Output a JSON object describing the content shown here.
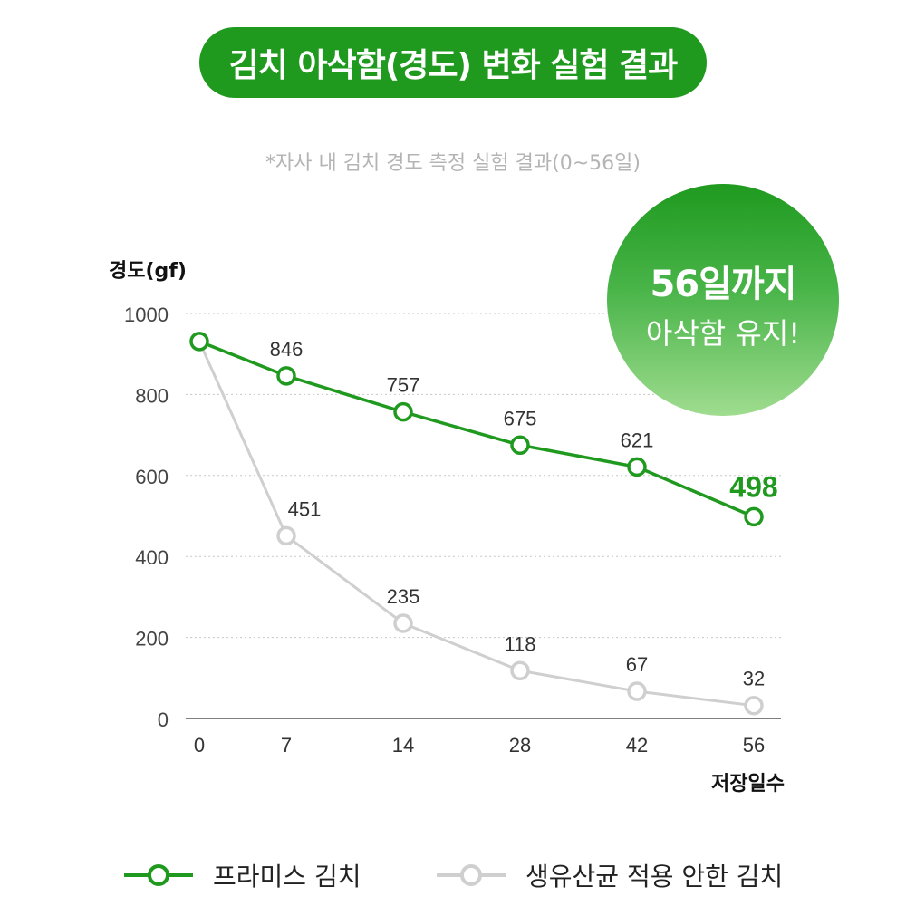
{
  "header": {
    "title": "김치 아삭함(경도) 변화 실험 결과",
    "subtitle": "*자사 내 김치 경도 측정 실험 결과(0~56일)"
  },
  "badge": {
    "line1": "56일까지",
    "line2": "아삭함 유지!"
  },
  "colors": {
    "accent": "#1f9a1f",
    "gray_series": "#cfcfcf"
  },
  "chart_data": {
    "type": "line",
    "ylabel": "경도(gf)",
    "xlabel": "저장일수",
    "ylim": [
      0,
      1000
    ],
    "y_ticks": [
      "0",
      "200",
      "400",
      "600",
      "800",
      "1000"
    ],
    "categories": [
      "0",
      "7",
      "14",
      "28",
      "42",
      "56"
    ],
    "grid": "horizontal dotted",
    "series": [
      {
        "name": "프라미스 김치",
        "color": "#1f9a1f",
        "values": [
          931,
          846,
          757,
          675,
          621,
          498
        ],
        "labels": [
          "",
          "846",
          "757",
          "675",
          "621",
          "498"
        ]
      },
      {
        "name": "생유산균 적용 안한 김치",
        "color": "#cfcfcf",
        "values": [
          931,
          451,
          235,
          118,
          67,
          32
        ],
        "labels": [
          "",
          "451",
          "235",
          "118",
          "67",
          "32"
        ]
      }
    ]
  }
}
